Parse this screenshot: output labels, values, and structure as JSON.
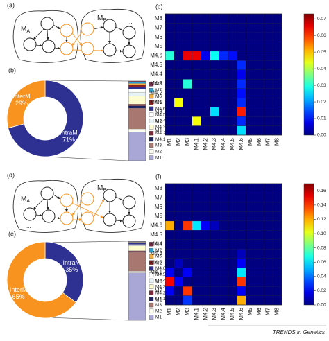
{
  "diagrams": [
    {
      "label": "(a)",
      "modules": [
        {
          "name": "M",
          "sub": "A"
        },
        {
          "name": "M",
          "sub": "B"
        }
      ],
      "ellipsis": "..."
    },
    {
      "label": "(d)",
      "modules": [
        {
          "name": "M",
          "sub": "A"
        },
        {
          "name": "M",
          "sub": "B"
        }
      ],
      "ellipsis": "..."
    }
  ],
  "chart_data": [
    {
      "type": "donut",
      "label": "(b)",
      "categories": [
        "IntraM",
        "InterM"
      ],
      "values": [
        71,
        29
      ],
      "value_labels": [
        "71%",
        "29%"
      ],
      "colors": [
        "#2e3192",
        "#f7931e"
      ]
    },
    {
      "type": "stacked_bar",
      "series": [
        {
          "name": "M1",
          "color": "#a9a7d6",
          "values": [
            36
          ]
        },
        {
          "name": "M2",
          "color": "#fbfbf0",
          "values": [
            4
          ]
        },
        {
          "name": "M3",
          "color": "#a8776f",
          "values": [
            26
          ]
        },
        {
          "name": "M4.1",
          "color": "#1c1f5e",
          "values": [
            3
          ]
        },
        {
          "name": "M4.2",
          "color": "#7a2a3a",
          "values": [
            2
          ]
        },
        {
          "name": "M4.3",
          "color": "#fdfccf",
          "values": [
            10
          ]
        },
        {
          "name": "M4.4",
          "color": "#e6f2f6",
          "values": [
            5
          ]
        },
        {
          "name": "M4.5",
          "color": "#ffffff",
          "values": [
            4
          ]
        },
        {
          "name": "M4.6",
          "color": "#2e3192",
          "values": [
            3
          ]
        },
        {
          "name": "M5",
          "color": "#8c1c1c",
          "values": [
            2
          ]
        },
        {
          "name": "M6",
          "color": "#f0b040",
          "values": [
            2
          ]
        },
        {
          "name": "M7",
          "color": "#2a9fd6",
          "values": [
            2
          ]
        },
        {
          "name": "M8",
          "color": "#7b2b4b",
          "values": [
            1
          ]
        }
      ]
    },
    {
      "type": "heatmap",
      "label": "(c)",
      "colormap": "jet",
      "x_categories": [
        "M1",
        "M2",
        "M3",
        "M4.1",
        "M4.2",
        "M4.3",
        "M4.4",
        "M4.5",
        "M4.6",
        "M5",
        "M6",
        "M7",
        "M8"
      ],
      "y_categories": [
        "M1",
        "M2",
        "M3",
        "M4.1",
        "M4.2",
        "M4.3",
        "M4.4",
        "M4.5",
        "M4.6",
        "M5",
        "M6",
        "M7",
        "M8"
      ],
      "z": [
        [
          0,
          0,
          0,
          0,
          0,
          0,
          0,
          0,
          0.025,
          0,
          0,
          0,
          0
        ],
        [
          0,
          0,
          0,
          0.045,
          0,
          0,
          0,
          0,
          0.012,
          0,
          0,
          0,
          0
        ],
        [
          0,
          0,
          0,
          0,
          0,
          0.025,
          0,
          0,
          0.062,
          0,
          0,
          0,
          0
        ],
        [
          0,
          0.045,
          0,
          0,
          0,
          0,
          0,
          0,
          0.012,
          0,
          0,
          0,
          0
        ],
        [
          0,
          0,
          0,
          0,
          0,
          0,
          0,
          0,
          0.01,
          0,
          0,
          0,
          0
        ],
        [
          0,
          0,
          0.03,
          0,
          0,
          0,
          0,
          0,
          0.012,
          0,
          0,
          0,
          0
        ],
        [
          0,
          0,
          0,
          0,
          0,
          0,
          0,
          0,
          0.008,
          0,
          0,
          0,
          0
        ],
        [
          0,
          0,
          0,
          0,
          0,
          0,
          0,
          0,
          0.012,
          0,
          0,
          0,
          0
        ],
        [
          0.03,
          0,
          0.065,
          0.065,
          0.008,
          0.028,
          0.012,
          0.01,
          0,
          0,
          0,
          0,
          0
        ],
        [
          0,
          0,
          0,
          0,
          0,
          0,
          0,
          0,
          0,
          0,
          0,
          0,
          0
        ],
        [
          0,
          0,
          0,
          0,
          0,
          0,
          0,
          0,
          0,
          0,
          0,
          0,
          0
        ],
        [
          0,
          0,
          0,
          0,
          0,
          0,
          0,
          0,
          0,
          0,
          0,
          0,
          0
        ],
        [
          0,
          0,
          0,
          0,
          0,
          0,
          0,
          0,
          0,
          0,
          0,
          0,
          0
        ]
      ],
      "zlim": [
        0,
        0.073
      ],
      "zticks": [
        {
          "value": 0,
          "label": "0.00"
        },
        {
          "value": 0.01,
          "label": "0.01"
        },
        {
          "value": 0.02,
          "label": "0.02"
        },
        {
          "value": 0.03,
          "label": "0.03"
        },
        {
          "value": 0.04,
          "label": "0.04"
        },
        {
          "value": 0.05,
          "label": "0.05"
        },
        {
          "value": 0.06,
          "label": "0.06"
        },
        {
          "value": 0.07,
          "label": "0.07"
        }
      ]
    },
    {
      "type": "donut",
      "label": "(e)",
      "categories": [
        "IntraM",
        "InterM"
      ],
      "values": [
        35,
        65
      ],
      "value_labels": [
        "35%",
        "65%"
      ],
      "colors": [
        "#2e3192",
        "#f7931e"
      ]
    },
    {
      "type": "stacked_bar",
      "series": [
        {
          "name": "M1",
          "color": "#a9a7d6",
          "values": [
            60
          ]
        },
        {
          "name": "M2",
          "color": "#fbfbf0",
          "values": [
            2
          ]
        },
        {
          "name": "M3",
          "color": "#a8776f",
          "values": [
            24
          ]
        },
        {
          "name": "M4.1",
          "color": "#1c1f5e",
          "values": [
            1
          ]
        },
        {
          "name": "M4.2",
          "color": "#7a2a3a",
          "values": [
            1
          ]
        },
        {
          "name": "M4.3",
          "color": "#fdfccf",
          "values": [
            6
          ]
        },
        {
          "name": "M4.4",
          "color": "#e6f2f6",
          "values": [
            1
          ]
        },
        {
          "name": "M4.5",
          "color": "#ffffff",
          "values": [
            1
          ]
        },
        {
          "name": "M4.6",
          "color": "#2e3192",
          "values": [
            2
          ]
        },
        {
          "name": "M5",
          "color": "#8c1c1c",
          "values": [
            0.5
          ]
        },
        {
          "name": "M6",
          "color": "#f0b040",
          "values": [
            0.5
          ]
        },
        {
          "name": "M7",
          "color": "#2a9fd6",
          "values": [
            0.5
          ]
        },
        {
          "name": "M8",
          "color": "#7b2b4b",
          "values": [
            0.5
          ]
        }
      ]
    },
    {
      "type": "heatmap",
      "label": "(f)",
      "colormap": "jet",
      "x_categories": [
        "M1",
        "M2",
        "M3",
        "M4.1",
        "M4.2",
        "M4.3",
        "M4.4",
        "M4.5",
        "M4.6",
        "M5",
        "M6",
        "M7",
        "M8"
      ],
      "y_categories": [
        "M1",
        "M2",
        "M3",
        "M4.1",
        "M4.2",
        "M4.3",
        "M4.4",
        "M4.5",
        "M4.6",
        "M5",
        "M6",
        "M7",
        "M8"
      ],
      "z": [
        [
          0,
          0,
          0.03,
          0,
          0,
          0,
          0,
          0,
          0.12,
          0,
          0,
          0,
          0
        ],
        [
          0.02,
          0,
          0.14,
          0,
          0,
          0,
          0,
          0,
          0.02,
          0,
          0,
          0,
          0
        ],
        [
          0.15,
          0.02,
          0,
          0,
          0,
          0,
          0,
          0,
          0.14,
          0,
          0,
          0,
          0
        ],
        [
          0.02,
          0,
          0.02,
          0,
          0,
          0,
          0,
          0,
          0.06,
          0,
          0,
          0,
          0
        ],
        [
          0,
          0.01,
          0,
          0,
          0,
          0,
          0,
          0,
          0.02,
          0,
          0,
          0,
          0
        ],
        [
          0,
          0,
          0,
          0,
          0,
          0,
          0,
          0,
          0.01,
          0,
          0,
          0,
          0
        ],
        [
          0,
          0,
          0,
          0,
          0,
          0,
          0,
          0,
          0,
          0,
          0,
          0,
          0
        ],
        [
          0,
          0,
          0,
          0,
          0,
          0,
          0,
          0,
          0,
          0,
          0,
          0,
          0
        ],
        [
          0.12,
          0,
          0.14,
          0.06,
          0.02,
          0.01,
          0,
          0,
          0,
          0,
          0,
          0,
          0
        ],
        [
          0,
          0,
          0,
          0,
          0,
          0,
          0,
          0,
          0,
          0,
          0,
          0,
          0
        ],
        [
          0,
          0,
          0,
          0,
          0,
          0,
          0,
          0,
          0,
          0,
          0,
          0,
          0
        ],
        [
          0,
          0,
          0,
          0,
          0,
          0,
          0,
          0,
          0,
          0,
          0,
          0,
          0
        ],
        [
          0,
          0,
          0,
          0,
          0,
          0,
          0,
          0,
          0,
          0,
          0,
          0,
          0
        ]
      ],
      "zlim": [
        0,
        0.17
      ],
      "zticks": [
        {
          "value": 0,
          "label": "0.00"
        },
        {
          "value": 0.02,
          "label": "0.02"
        },
        {
          "value": 0.04,
          "label": "0.04"
        },
        {
          "value": 0.06,
          "label": "0.06"
        },
        {
          "value": 0.08,
          "label": "0.08"
        },
        {
          "value": 0.1,
          "label": "0.10"
        },
        {
          "value": 0.12,
          "label": "0.12"
        },
        {
          "value": 0.14,
          "label": "0.14"
        },
        {
          "value": 0.16,
          "label": "0.16"
        }
      ]
    }
  ],
  "footer": "TRENDS in Genetics"
}
